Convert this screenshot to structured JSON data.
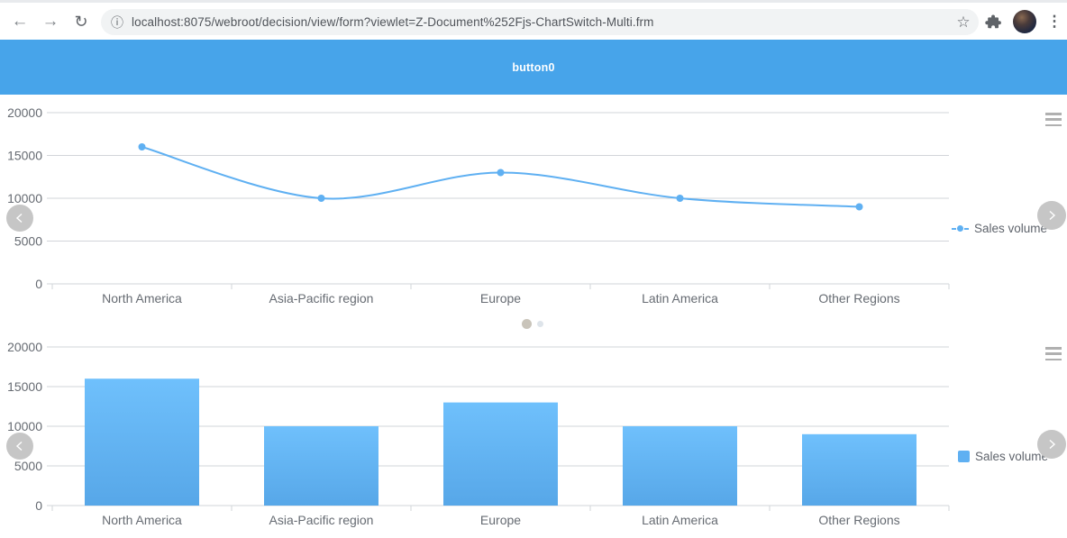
{
  "browser": {
    "url": "localhost:8075/webroot/decision/view/form?viewlet=Z-Document%252Fjs-ChartSwitch-Multi.frm",
    "back_icon": "←",
    "forward_icon": "→",
    "reload_icon": "↻",
    "info_icon": "ⓘ",
    "star_icon": "☆",
    "menu_icon": "⋮"
  },
  "banner": {
    "button_label": "button0"
  },
  "carousel": {
    "active_page": 1,
    "total_pages": 2
  },
  "colors": {
    "banner_blue": "#47a4ea",
    "series_blue": "#5fb0f2",
    "bar_gradient_top": "#6fc0fc",
    "bar_gradient_bottom": "#57a7e8",
    "grid": "#d2d5d9",
    "axis_text": "#666b72",
    "legend_text": "#5f646c",
    "arrow_bg": "#c6c6c6",
    "dot_active": "#c9c4ba",
    "dot_inactive": "#dee4ea"
  },
  "chart_data": [
    {
      "type": "line",
      "title": "",
      "categories": [
        "North America",
        "Asia-Pacific region",
        "Europe",
        "Latin America",
        "Other Regions"
      ],
      "series": [
        {
          "name": "Sales volume",
          "values": [
            16000,
            10000,
            13000,
            10000,
            9000
          ]
        }
      ],
      "xlabel": "",
      "ylabel": "",
      "ylim": [
        0,
        20000
      ],
      "yticks": [
        0,
        5000,
        10000,
        15000,
        20000
      ],
      "grid": true,
      "smooth": true,
      "legend_position": "right"
    },
    {
      "type": "bar",
      "title": "",
      "categories": [
        "North America",
        "Asia-Pacific region",
        "Europe",
        "Latin America",
        "Other Regions"
      ],
      "series": [
        {
          "name": "Sales volume",
          "values": [
            16000,
            10000,
            13000,
            10000,
            9000
          ]
        }
      ],
      "xlabel": "",
      "ylabel": "",
      "ylim": [
        0,
        20000
      ],
      "yticks": [
        0,
        5000,
        10000,
        15000,
        20000
      ],
      "grid": true,
      "legend_position": "right"
    }
  ]
}
